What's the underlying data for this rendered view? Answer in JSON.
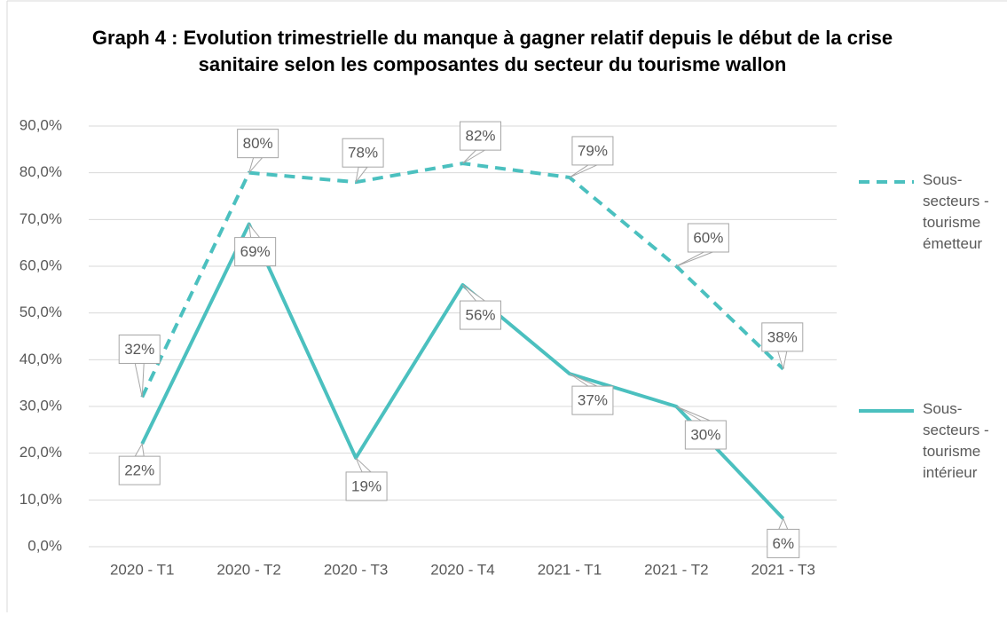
{
  "chart_data": {
    "type": "line",
    "title": "Graph 4 : Evolution trimestrielle du manque à gagner relatif depuis le début de la crise sanitaire selon les composantes du secteur du tourisme wallon",
    "categories": [
      "2020 - T1",
      "2020 - T2",
      "2020 - T3",
      "2020 - T4",
      "2021 - T1",
      "2021 - T2",
      "2021 - T3"
    ],
    "series": [
      {
        "name": "Sous-secteurs - tourisme émetteur",
        "color": "#4bc0bf",
        "dash": true,
        "values": [
          32,
          80,
          78,
          82,
          79,
          60,
          38
        ],
        "value_labels": [
          "32%",
          "80%",
          "78%",
          "82%",
          "79%",
          "60%",
          "38%"
        ]
      },
      {
        "name": "Sous-secteurs - tourisme intérieur",
        "color": "#4bc0bf",
        "dash": false,
        "values": [
          22,
          69,
          19,
          56,
          37,
          30,
          6
        ],
        "value_labels": [
          "22%",
          "69%",
          "19%",
          "56%",
          "37%",
          "30%",
          "6%"
        ]
      }
    ],
    "ylim": [
      0,
      90
    ],
    "yticks": [
      {
        "value": 0,
        "label": "0,0%"
      },
      {
        "value": 10,
        "label": "10,0%"
      },
      {
        "value": 20,
        "label": "20,0%"
      },
      {
        "value": 30,
        "label": "30,0%"
      },
      {
        "value": 40,
        "label": "40,0%"
      },
      {
        "value": 50,
        "label": "50,0%"
      },
      {
        "value": 60,
        "label": "60,0%"
      },
      {
        "value": 70,
        "label": "70,0%"
      },
      {
        "value": 80,
        "label": "80,0%"
      },
      {
        "value": 90,
        "label": "90,0%"
      }
    ],
    "grid": true,
    "legend": "right"
  }
}
